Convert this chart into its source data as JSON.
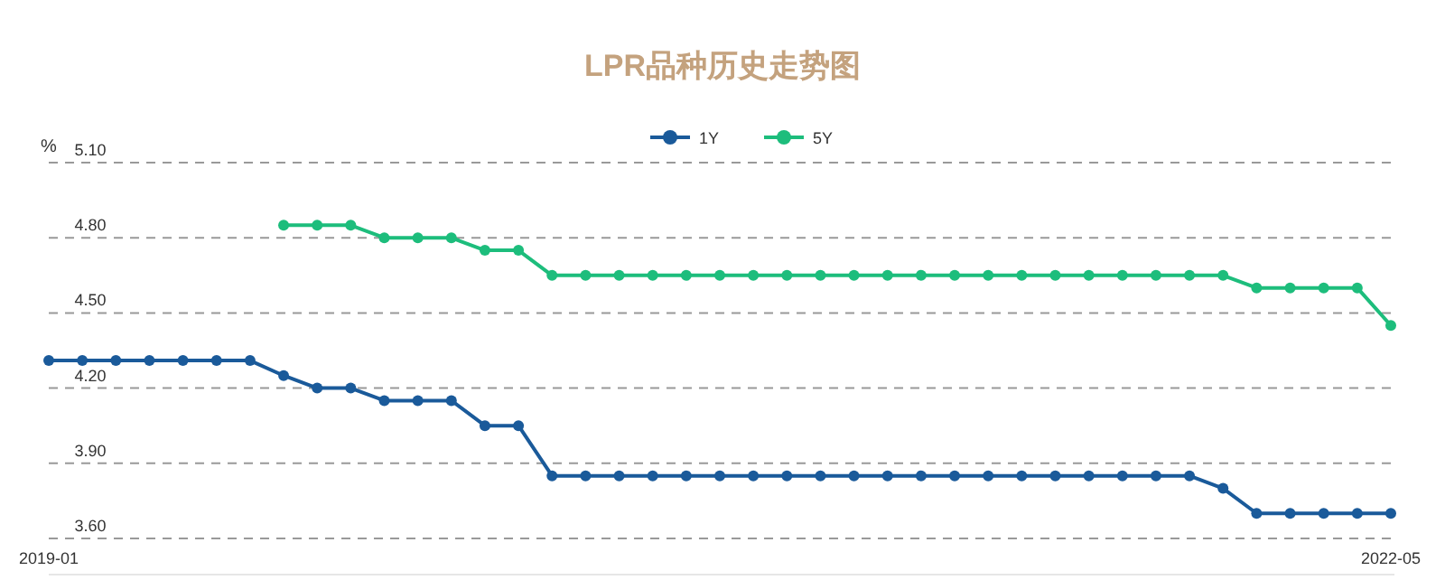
{
  "chart_data": {
    "type": "line",
    "title": "LPR品种历史走势图",
    "ylabel": "%",
    "categories": [
      "2019-01",
      null,
      null,
      null,
      null,
      null,
      null,
      null,
      null,
      null,
      null,
      null,
      null,
      null,
      null,
      null,
      null,
      null,
      null,
      null,
      null,
      null,
      null,
      null,
      null,
      null,
      null,
      null,
      null,
      null,
      null,
      null,
      null,
      null,
      null,
      null,
      null,
      null,
      null,
      null,
      "2022-05"
    ],
    "series": [
      {
        "name": "1Y",
        "color": "#1a5a9a",
        "values": [
          4.31,
          4.31,
          4.31,
          4.31,
          4.31,
          4.31,
          4.31,
          4.25,
          4.2,
          4.2,
          4.15,
          4.15,
          4.15,
          4.05,
          4.05,
          3.85,
          3.85,
          3.85,
          3.85,
          3.85,
          3.85,
          3.85,
          3.85,
          3.85,
          3.85,
          3.85,
          3.85,
          3.85,
          3.85,
          3.85,
          3.85,
          3.85,
          3.85,
          3.85,
          3.85,
          3.8,
          3.7,
          3.7,
          3.7,
          3.7,
          3.7
        ]
      },
      {
        "name": "5Y",
        "color": "#1dbd7c",
        "values": [
          null,
          null,
          null,
          null,
          null,
          null,
          null,
          4.85,
          4.85,
          4.85,
          4.8,
          4.8,
          4.8,
          4.75,
          4.75,
          4.65,
          4.65,
          4.65,
          4.65,
          4.65,
          4.65,
          4.65,
          4.65,
          4.65,
          4.65,
          4.65,
          4.65,
          4.65,
          4.65,
          4.65,
          4.65,
          4.65,
          4.65,
          4.65,
          4.65,
          4.65,
          4.6,
          4.6,
          4.6,
          4.6,
          4.45
        ]
      }
    ],
    "ylim": [
      3.6,
      5.1
    ],
    "yticks": [
      {
        "value": 3.6,
        "label": "3.60"
      },
      {
        "value": 3.9,
        "label": "3.90"
      },
      {
        "value": 4.2,
        "label": "4.20"
      },
      {
        "value": 4.5,
        "label": "4.50"
      },
      {
        "value": 4.8,
        "label": "4.80"
      },
      {
        "value": 5.1,
        "label": "5.10"
      }
    ],
    "grid": "y",
    "legend": "top",
    "marker": "circle",
    "line_style": "solid"
  }
}
